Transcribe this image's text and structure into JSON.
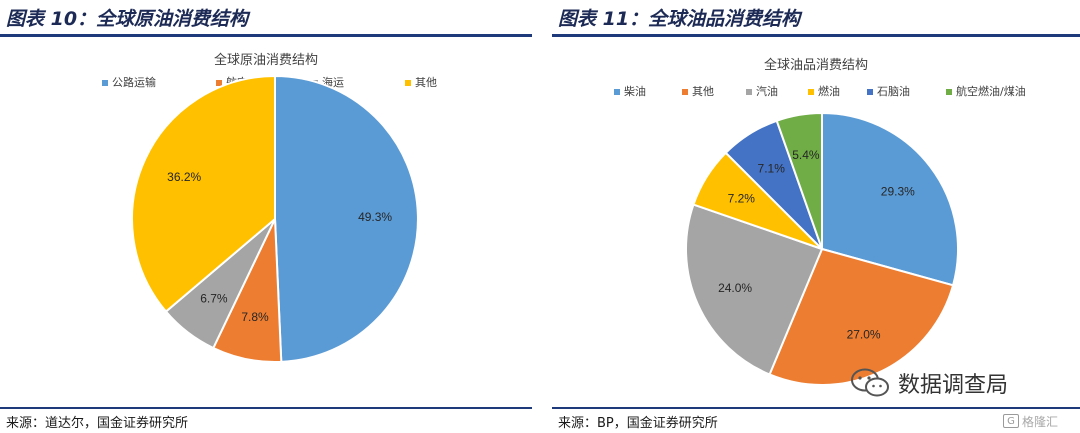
{
  "figures": [
    {
      "figure_title": "图表 10：全球原油消费结构",
      "source": "来源：道达尔，国金证券研究所"
    },
    {
      "figure_title": "图表 11：全球油品消费结构",
      "source": "来源：BP，国金证券研究所"
    }
  ],
  "chart_data": [
    {
      "type": "pie",
      "title": "全球原油消费结构",
      "categories": [
        "公路运输",
        "航空",
        "海运",
        "其他"
      ],
      "values": [
        49.3,
        7.8,
        6.7,
        36.2
      ],
      "labels": [
        "49.3%",
        "7.8%",
        "6.7%",
        "36.2%"
      ],
      "colors": [
        "#5b9bd5",
        "#ed7d31",
        "#a5a5a5",
        "#ffc000"
      ],
      "legend": "top",
      "start_angle_deg": 0,
      "direction": "clockwise"
    },
    {
      "type": "pie",
      "title": "全球油品消费结构",
      "categories": [
        "柴油",
        "其他",
        "汽油",
        "燃油",
        "石脑油",
        "航空燃油/煤油"
      ],
      "values": [
        29.3,
        27.0,
        24.0,
        7.2,
        7.1,
        5.4
      ],
      "labels": [
        "29.3%",
        "27.0%",
        "24.0%",
        "7.2%",
        "7.1%",
        "5.4%"
      ],
      "colors": [
        "#5b9bd5",
        "#ed7d31",
        "#a5a5a5",
        "#ffc000",
        "#4472c4",
        "#70ad47"
      ],
      "legend": "top",
      "start_angle_deg": 0,
      "direction": "clockwise"
    }
  ],
  "watermark": {
    "text": "数据调查局",
    "icon": "wechat-icon"
  },
  "corner_logo": {
    "text": "格隆汇",
    "icon": "glh-logo-icon"
  }
}
